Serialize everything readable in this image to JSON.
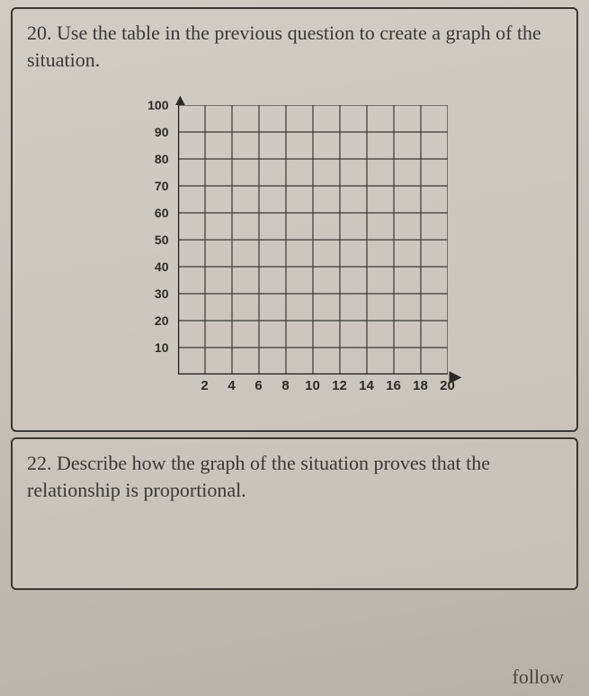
{
  "question20": {
    "number": "20.",
    "text": "Use the table in the previous question to create a graph of the situation."
  },
  "question22": {
    "number": "22.",
    "text": "Describe how the graph of the situation proves that the relationship is proportional."
  },
  "chart": {
    "type": "grid",
    "xlim": [
      0,
      20
    ],
    "ylim": [
      0,
      100
    ],
    "xtick_step": 2,
    "ytick_step": 10,
    "x_ticks": [
      "2",
      "4",
      "6",
      "8",
      "10",
      "12",
      "14",
      "16",
      "18",
      "20"
    ],
    "y_ticks": [
      "10",
      "20",
      "30",
      "40",
      "50",
      "60",
      "70",
      "80",
      "90",
      "100"
    ],
    "grid_color": "#3a3834",
    "axis_color": "#1a1816",
    "background_color": "transparent",
    "grid_line_width": 1.2,
    "axis_line_width": 2.4,
    "label_fontsize": 14,
    "label_fontweight": "bold",
    "label_color": "#2c2a26"
  },
  "partial_text": "follow"
}
